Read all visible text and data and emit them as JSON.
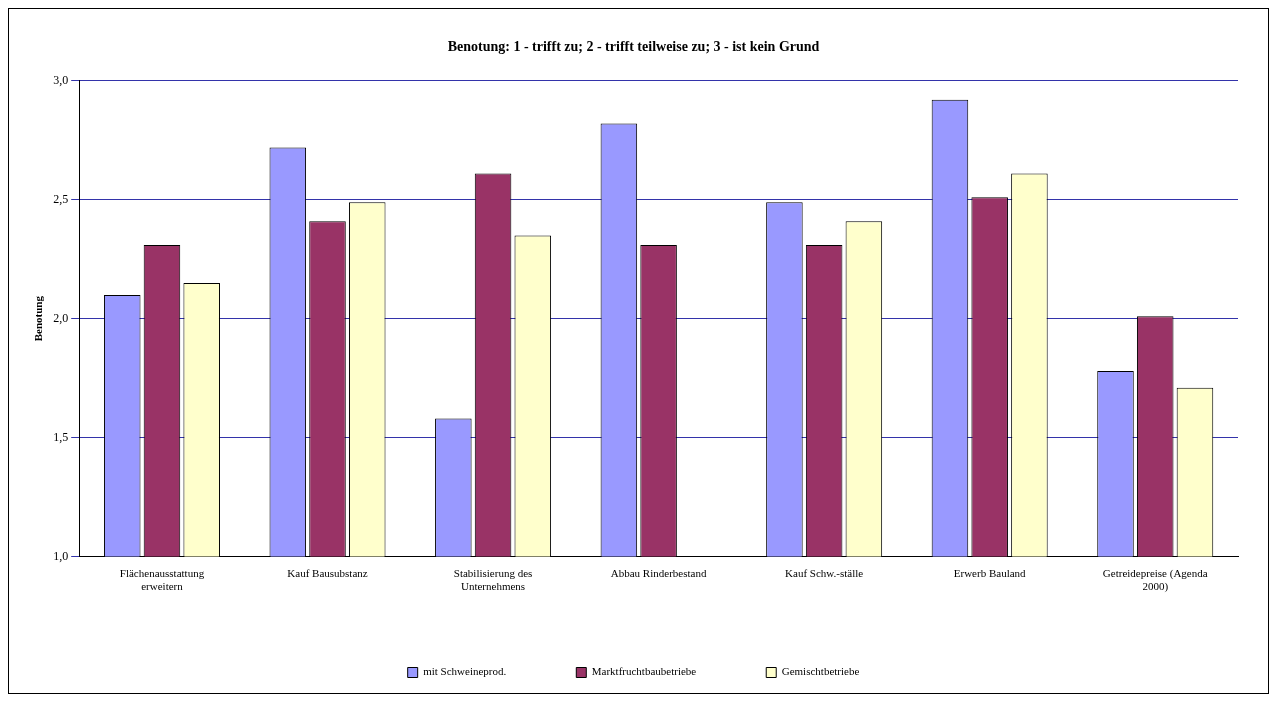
{
  "chart_data": {
    "type": "bar",
    "title": "Benotung: 1 - trifft zu; 2 - trifft teilweise zu; 3 - ist kein Grund",
    "ylabel": "Benotung",
    "categories": [
      "Flächenausstattung erweitern",
      "Kauf Bausubstanz",
      "Stabilisierung des Unternehmens",
      "Abbau Rinderbestand",
      "Kauf Schw.-ställe",
      "Erwerb Bauland",
      "Getreidepreise (Agenda 2000)"
    ],
    "series": [
      {
        "name": "mit Schweineprod.",
        "color": "#9999ff",
        "values": [
          2.1,
          2.72,
          1.58,
          2.82,
          2.49,
          2.92,
          1.78
        ]
      },
      {
        "name": "Marktfruchtbaubetriebe",
        "color": "#993366",
        "values": [
          2.31,
          2.41,
          2.61,
          2.31,
          2.31,
          2.51,
          2.01
        ]
      },
      {
        "name": "Gemischtbetriebe",
        "color": "#ffffcc",
        "values": [
          2.15,
          2.49,
          2.35,
          null,
          2.41,
          2.61,
          1.71
        ]
      }
    ],
    "ylim": [
      1,
      3
    ],
    "yticks": [
      {
        "value": 1,
        "label": "1,0"
      },
      {
        "value": 1.5,
        "label": "1,5"
      },
      {
        "value": 2,
        "label": "2,0"
      },
      {
        "value": 2.5,
        "label": "2,5"
      },
      {
        "value": 3,
        "label": "3,0"
      }
    ],
    "grid": "y",
    "legend": "bottom"
  }
}
